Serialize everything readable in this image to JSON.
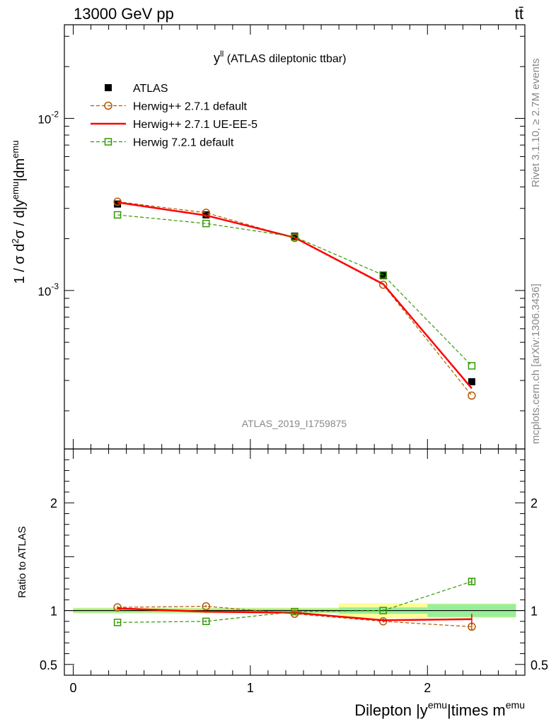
{
  "header": {
    "left": "13000 GeV pp",
    "right": "tt̄"
  },
  "side": {
    "rivet": "Rivet 3.1.10, ≥ 2.7M events",
    "mcplots": "mcplots.cern.ch [arXiv:1306.3436]"
  },
  "chart_data": [
    {
      "type": "line",
      "title": "y^ll (ATLAS dileptonic ttbar)",
      "title_main": "y",
      "title_sup": "ll",
      "title_rest": " (ATLAS dileptonic ttbar)",
      "analysis_label": "ATLAS_2019_I1759875",
      "ylabel": "1 / σ d²σ / d|y^emu|dm^emu",
      "ylabel_parts": [
        "1 / σ  d",
        "2",
        "σ / d|y",
        "emu",
        "|dm",
        "emu"
      ],
      "yscale": "log",
      "ylim": [
        0.00012,
        0.035
      ],
      "xlim": [
        -0.05,
        2.55
      ],
      "y_tick_labels": [
        {
          "value": 0.01,
          "base": "10",
          "exp": "-2"
        },
        {
          "value": 0.001,
          "base": "10",
          "exp": "-3"
        }
      ],
      "legend_position": "top-left",
      "x": [
        0.25,
        0.75,
        1.25,
        1.75,
        2.25
      ],
      "series": [
        {
          "name": "ATLAS",
          "color": "#000000",
          "marker": "filled-square",
          "style": "points",
          "values": [
            0.00318,
            0.00275,
            0.00207,
            0.00122,
            0.000295
          ],
          "band_total": [
            0.03,
            0.03,
            0.03,
            0.07,
            0.07
          ],
          "band_stat": [
            0.02,
            0.02,
            0.02,
            0.03,
            0.06
          ]
        },
        {
          "name": "Herwig++ 2.7.1 default",
          "color": "#b35900",
          "marker": "open-circle",
          "style": "dashed",
          "values": [
            0.00328,
            0.00283,
            0.00202,
            0.00108,
            0.000245
          ]
        },
        {
          "name": "Herwig++ 2.7.1 UE-EE-5",
          "color": "#ff0000",
          "marker": "none",
          "style": "solid",
          "values": [
            0.00325,
            0.00273,
            0.00203,
            0.00109,
            0.00027
          ]
        },
        {
          "name": "Herwig 7.2.1 default",
          "color": "#339900",
          "marker": "open-square",
          "style": "dashed",
          "values": [
            0.00275,
            0.00245,
            0.00205,
            0.00123,
            0.000365
          ]
        }
      ]
    },
    {
      "type": "line",
      "ylabel": "Ratio to ATLAS",
      "xlabel": "Dilepton |y^emu|times m^emu",
      "xlabel_parts": [
        "Dilepton |y",
        "emu",
        "|times m",
        "emu"
      ],
      "ylim": [
        0.4,
        2.5
      ],
      "xlim": [
        -0.05,
        2.55
      ],
      "y_ticks": [
        0.5,
        1,
        2
      ],
      "y_tick_labels": [
        "0.5",
        "1",
        "2"
      ],
      "x_ticks": [
        0,
        1,
        2
      ],
      "x_tick_labels": [
        "0",
        "1",
        "2"
      ],
      "x": [
        0.25,
        0.75,
        1.25,
        1.75,
        2.25
      ],
      "bins": [
        [
          0,
          0.5
        ],
        [
          0.5,
          1.0
        ],
        [
          1.0,
          1.5
        ],
        [
          1.5,
          2.0
        ],
        [
          2.0,
          2.5
        ]
      ],
      "band_total": [
        0.03,
        0.03,
        0.03,
        0.07,
        0.07
      ],
      "band_stat": [
        0.02,
        0.02,
        0.02,
        0.03,
        0.06
      ],
      "series": [
        {
          "name": "Herwig++ 2.7.1 default",
          "color": "#b35900",
          "marker": "open-circle",
          "style": "dashed",
          "values": [
            1.03,
            1.04,
            0.97,
            0.9,
            0.85
          ],
          "err": [
            0.01,
            0.01,
            0.01,
            0.01,
            0.03
          ]
        },
        {
          "name": "Herwig++ 2.7.1 UE-EE-5",
          "color": "#ff0000",
          "marker": "none",
          "style": "solid",
          "values": [
            1.02,
            0.99,
            0.98,
            0.91,
            0.92
          ],
          "err": [
            0.01,
            0.01,
            0.01,
            0.015,
            0.05
          ]
        },
        {
          "name": "Herwig 7.2.1 default",
          "color": "#339900",
          "marker": "open-square",
          "style": "dashed",
          "values": [
            0.89,
            0.9,
            0.99,
            1.0,
            1.27
          ],
          "err": [
            0.01,
            0.01,
            0.01,
            0.01,
            0.03
          ]
        }
      ]
    }
  ]
}
